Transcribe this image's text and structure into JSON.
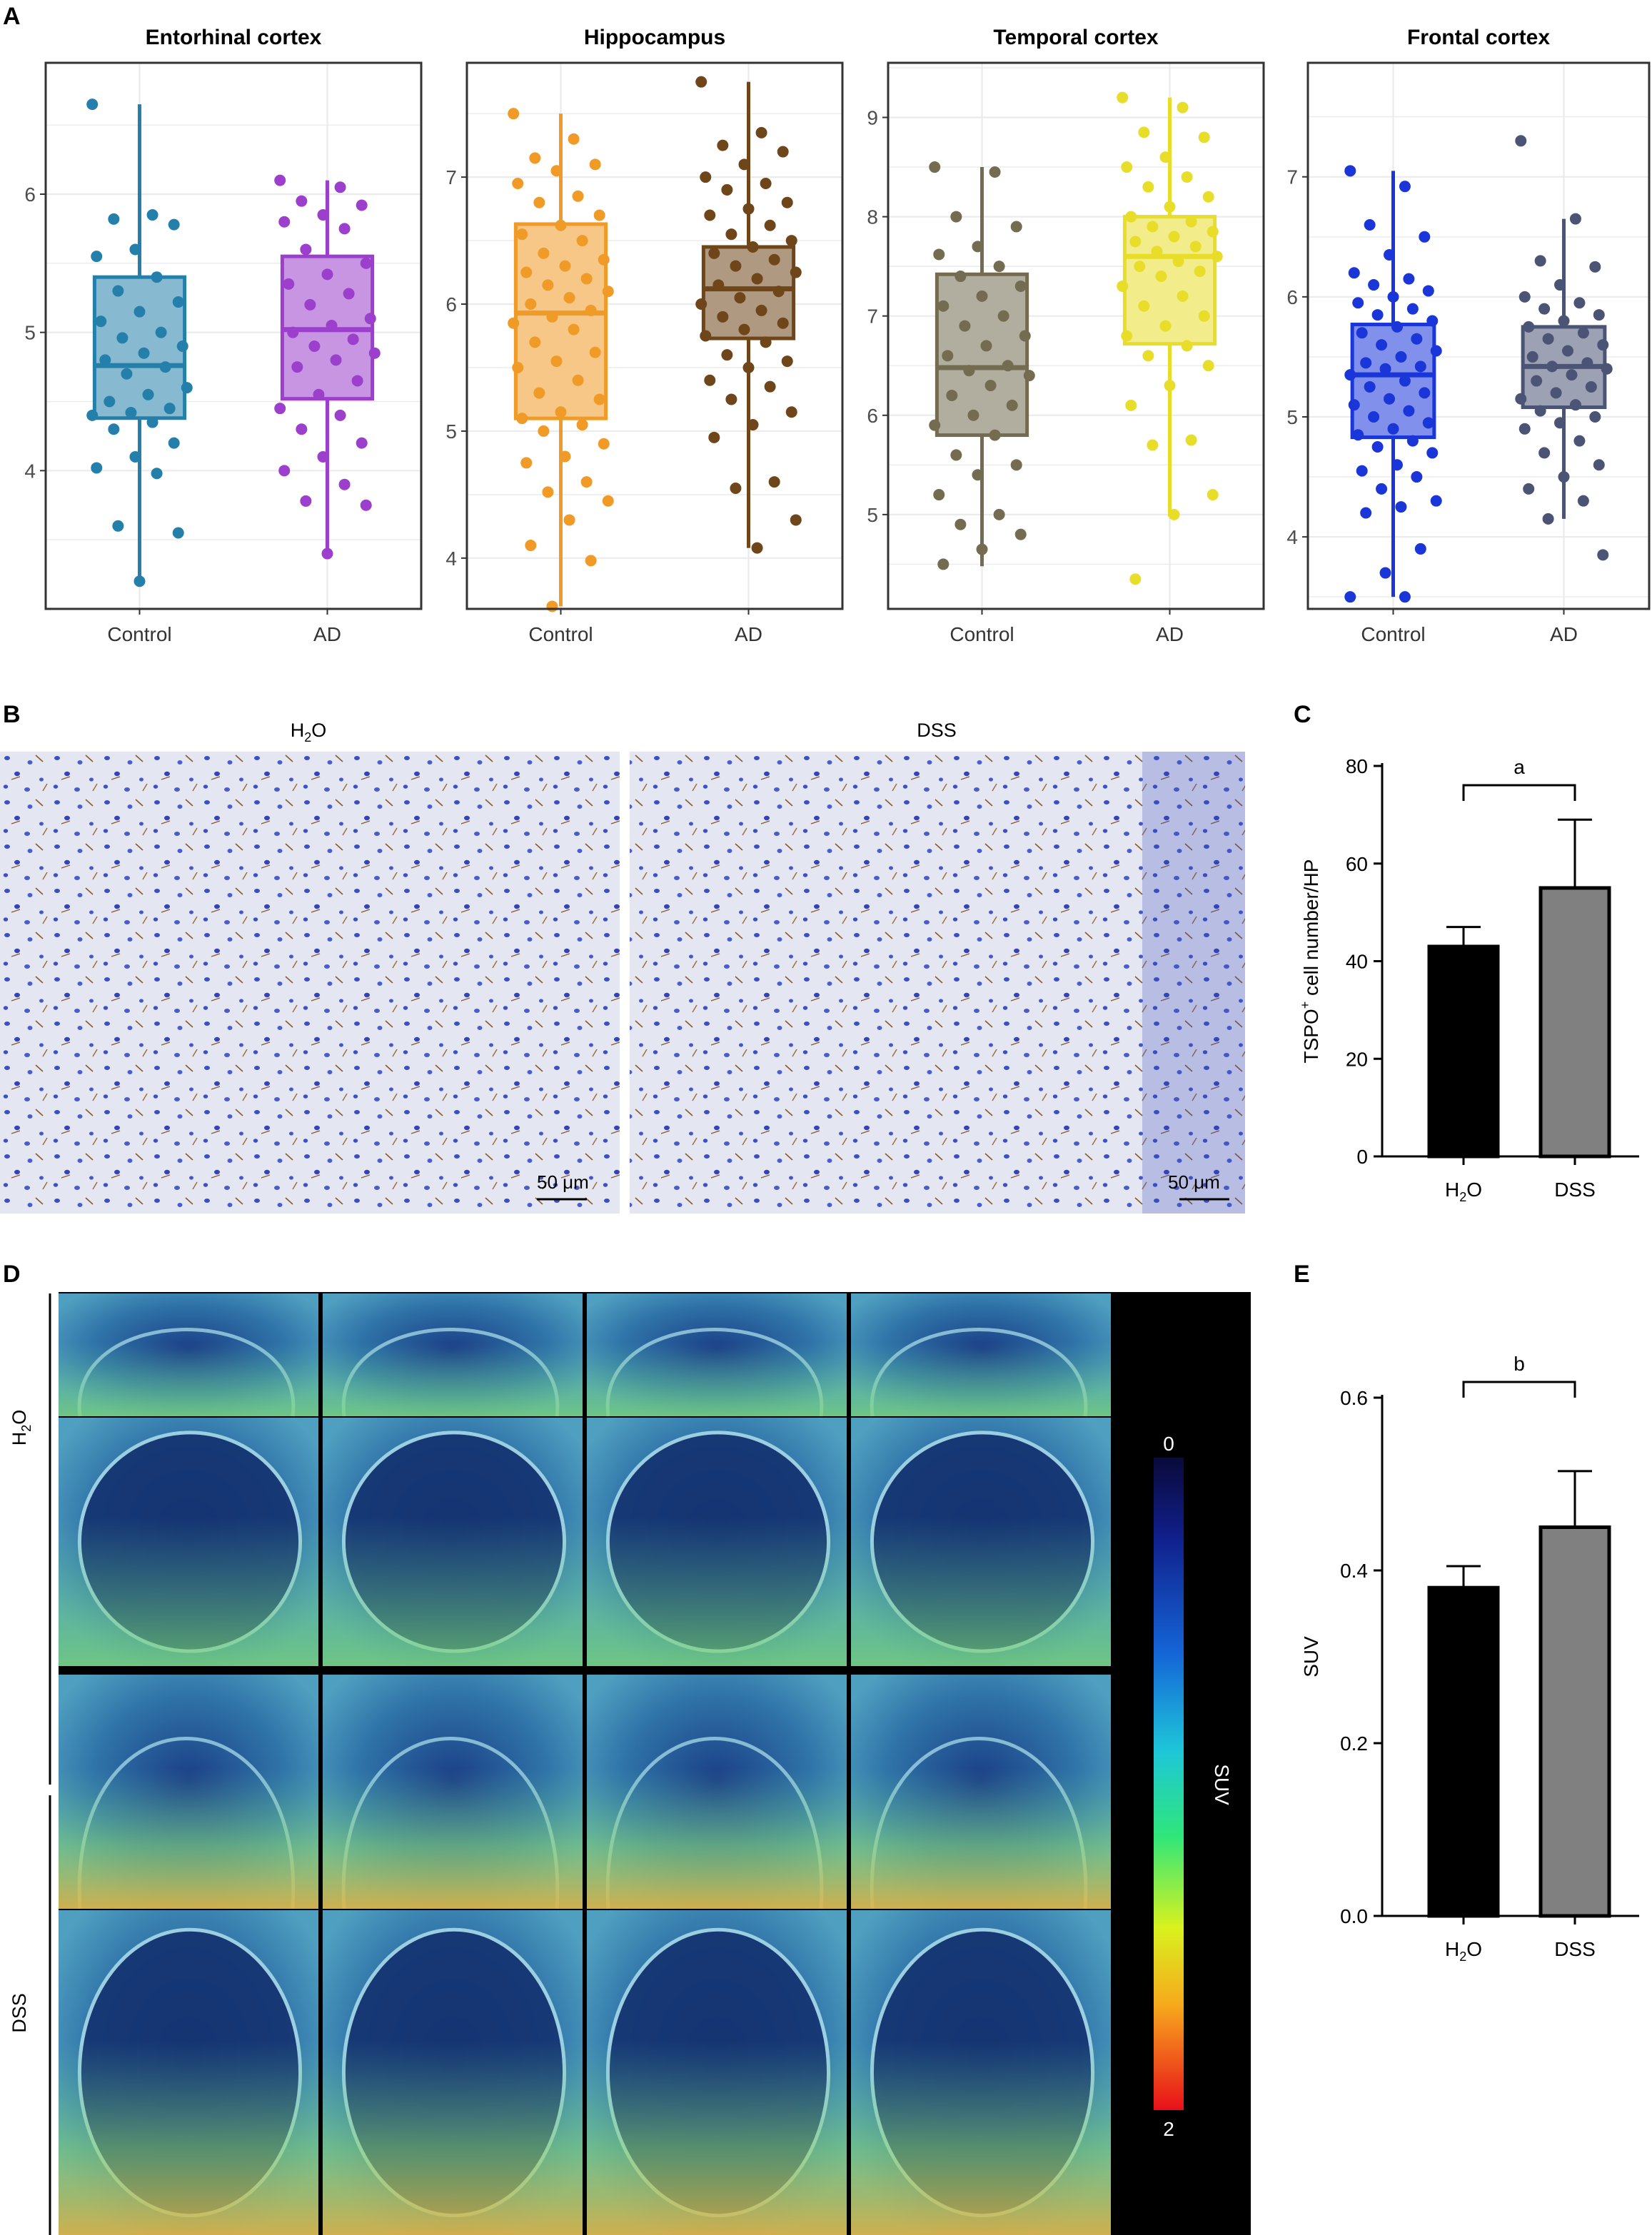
{
  "figure": {
    "panel_labels": [
      "A",
      "B",
      "C",
      "D",
      "E"
    ]
  },
  "chart_data": [
    {
      "panel": "A",
      "type": "box",
      "title": "Entorhinal cortex",
      "categories": [
        "Control",
        "AD"
      ],
      "colors": [
        "#2480aa",
        "#9b3fcc"
      ],
      "yticks": [
        4,
        5,
        6
      ],
      "ylim": [
        3.0,
        6.95
      ],
      "grid": true,
      "boxes": [
        {
          "group": "Control",
          "whisker_low": 3.2,
          "q1": 4.38,
          "median": 4.76,
          "q3": 5.4,
          "whisker_high": 6.65,
          "points": [
            6.65,
            5.85,
            5.82,
            5.78,
            5.6,
            5.55,
            5.4,
            5.3,
            5.22,
            5.15,
            5.08,
            5.0,
            4.96,
            4.9,
            4.85,
            4.8,
            4.75,
            4.7,
            4.6,
            4.55,
            4.5,
            4.45,
            4.42,
            4.4,
            4.35,
            4.3,
            4.2,
            4.1,
            4.02,
            3.98,
            3.6,
            3.55,
            3.2
          ]
        },
        {
          "group": "AD",
          "whisker_low": 3.4,
          "q1": 4.52,
          "median": 5.02,
          "q3": 5.55,
          "whisker_high": 6.1,
          "points": [
            6.1,
            6.05,
            5.95,
            5.92,
            5.85,
            5.8,
            5.75,
            5.6,
            5.5,
            5.42,
            5.35,
            5.28,
            5.2,
            5.1,
            5.05,
            5.0,
            4.95,
            4.9,
            4.85,
            4.8,
            4.75,
            4.65,
            4.55,
            4.45,
            4.4,
            4.3,
            4.2,
            4.1,
            4.0,
            3.9,
            3.78,
            3.75,
            3.4
          ]
        }
      ]
    },
    {
      "panel": "A",
      "type": "box",
      "title": "Hippocampus",
      "categories": [
        "Control",
        "AD"
      ],
      "colors": [
        "#f09a27",
        "#6f4619"
      ],
      "yticks": [
        4,
        5,
        6,
        7
      ],
      "ylim": [
        3.6,
        7.9
      ],
      "grid": true,
      "boxes": [
        {
          "group": "Control",
          "whisker_low": 3.62,
          "q1": 5.1,
          "median": 5.93,
          "q3": 6.63,
          "whisker_high": 7.5,
          "points": [
            7.5,
            7.3,
            7.15,
            7.1,
            7.05,
            6.95,
            6.85,
            6.8,
            6.7,
            6.62,
            6.55,
            6.5,
            6.4,
            6.35,
            6.3,
            6.25,
            6.2,
            6.15,
            6.1,
            6.05,
            6.0,
            5.95,
            5.9,
            5.85,
            5.8,
            5.7,
            5.62,
            5.55,
            5.5,
            5.4,
            5.3,
            5.25,
            5.15,
            5.1,
            5.05,
            5.0,
            4.9,
            4.8,
            4.75,
            4.6,
            4.52,
            4.45,
            4.3,
            4.1,
            3.98,
            3.62
          ]
        },
        {
          "group": "AD",
          "whisker_low": 4.08,
          "q1": 5.73,
          "median": 6.12,
          "q3": 6.45,
          "whisker_high": 7.75,
          "points": [
            7.75,
            7.35,
            7.25,
            7.2,
            7.1,
            7.0,
            6.95,
            6.9,
            6.8,
            6.75,
            6.7,
            6.62,
            6.55,
            6.5,
            6.45,
            6.4,
            6.35,
            6.3,
            6.25,
            6.2,
            6.15,
            6.1,
            6.05,
            6.0,
            5.95,
            5.9,
            5.85,
            5.8,
            5.75,
            5.7,
            5.6,
            5.55,
            5.5,
            5.4,
            5.35,
            5.25,
            5.15,
            5.05,
            4.95,
            4.6,
            4.55,
            4.3,
            4.08
          ]
        }
      ]
    },
    {
      "panel": "A",
      "type": "box",
      "title": "Temporal cortex",
      "categories": [
        "Control",
        "AD"
      ],
      "colors": [
        "#736c50",
        "#e8de2a"
      ],
      "yticks": [
        5,
        6,
        7,
        8,
        9
      ],
      "ylim": [
        4.05,
        9.55
      ],
      "grid": true,
      "boxes": [
        {
          "group": "Control",
          "whisker_low": 4.48,
          "q1": 5.8,
          "median": 6.48,
          "q3": 7.42,
          "whisker_high": 8.5,
          "points": [
            8.5,
            8.45,
            8.0,
            7.9,
            7.7,
            7.62,
            7.5,
            7.4,
            7.3,
            7.2,
            7.1,
            7.0,
            6.9,
            6.8,
            6.7,
            6.6,
            6.5,
            6.45,
            6.4,
            6.3,
            6.2,
            6.1,
            6.0,
            5.9,
            5.8,
            5.6,
            5.5,
            5.4,
            5.2,
            5.0,
            4.9,
            4.8,
            4.65,
            4.5
          ]
        },
        {
          "group": "AD",
          "whisker_low": 4.98,
          "q1": 6.72,
          "median": 7.6,
          "q3": 8.0,
          "whisker_high": 9.2,
          "points": [
            9.2,
            9.1,
            8.85,
            8.8,
            8.6,
            8.5,
            8.4,
            8.3,
            8.2,
            8.1,
            8.0,
            7.95,
            7.9,
            7.85,
            7.8,
            7.75,
            7.7,
            7.65,
            7.6,
            7.55,
            7.5,
            7.45,
            7.4,
            7.3,
            7.2,
            7.1,
            7.0,
            6.9,
            6.8,
            6.7,
            6.6,
            6.5,
            6.3,
            6.1,
            5.75,
            5.7,
            5.2,
            5.0,
            4.35
          ]
        }
      ]
    },
    {
      "panel": "A",
      "type": "box",
      "title": "Frontal cortex",
      "categories": [
        "Control",
        "AD"
      ],
      "colors": [
        "#1a36d8",
        "#4b5475"
      ],
      "yticks": [
        4,
        5,
        6,
        7
      ],
      "ylim": [
        3.4,
        7.95
      ],
      "grid": true,
      "boxes": [
        {
          "group": "Control",
          "whisker_low": 3.5,
          "q1": 4.83,
          "median": 5.35,
          "q3": 5.77,
          "whisker_high": 7.05,
          "points": [
            7.05,
            6.92,
            6.6,
            6.5,
            6.35,
            6.2,
            6.15,
            6.1,
            6.05,
            6.0,
            5.95,
            5.9,
            5.85,
            5.8,
            5.75,
            5.7,
            5.65,
            5.6,
            5.55,
            5.5,
            5.45,
            5.42,
            5.4,
            5.35,
            5.3,
            5.25,
            5.2,
            5.15,
            5.1,
            5.05,
            5.0,
            4.95,
            4.9,
            4.85,
            4.8,
            4.75,
            4.7,
            4.6,
            4.55,
            4.5,
            4.4,
            4.3,
            4.25,
            4.2,
            3.9,
            3.7,
            3.5,
            3.5
          ]
        },
        {
          "group": "AD",
          "whisker_low": 4.15,
          "q1": 5.08,
          "median": 5.42,
          "q3": 5.75,
          "whisker_high": 6.65,
          "points": [
            7.3,
            6.65,
            6.3,
            6.25,
            6.1,
            6.0,
            5.95,
            5.9,
            5.85,
            5.8,
            5.75,
            5.7,
            5.65,
            5.6,
            5.55,
            5.5,
            5.45,
            5.42,
            5.4,
            5.35,
            5.3,
            5.25,
            5.2,
            5.15,
            5.1,
            5.05,
            5.0,
            4.95,
            4.9,
            4.8,
            4.7,
            4.6,
            4.5,
            4.4,
            4.3,
            4.15,
            3.85
          ]
        }
      ]
    },
    {
      "panel": "C",
      "type": "bar",
      "categories": [
        "H2O",
        "DSS"
      ],
      "category_labels": [
        [
          "H",
          "2",
          "O"
        ],
        [
          "DSS",
          "",
          ""
        ]
      ],
      "values": [
        43,
        55
      ],
      "errors": [
        4,
        14
      ],
      "colors": [
        "#000000",
        "#808080"
      ],
      "ylabel": [
        "TSPO",
        "+",
        " cell number/HP"
      ],
      "yticks": [
        0,
        20,
        40,
        60,
        80
      ],
      "ylim": [
        0,
        80
      ],
      "annotation": "a"
    },
    {
      "panel": "E",
      "type": "bar",
      "categories": [
        "H2O",
        "DSS"
      ],
      "category_labels": [
        [
          "H",
          "2",
          "O"
        ],
        [
          "DSS",
          "",
          ""
        ]
      ],
      "values": [
        0.38,
        0.45
      ],
      "errors": [
        0.025,
        0.065
      ],
      "colors": [
        "#000000",
        "#808080"
      ],
      "ylabel": [
        "SUV",
        "",
        ""
      ],
      "yticks": [
        "0.0",
        "0.2",
        "0.4",
        "0.6"
      ],
      "yticks_num": [
        0,
        0.2,
        0.4,
        0.6
      ],
      "ylim": [
        0,
        0.6
      ],
      "annotation": "b"
    }
  ],
  "micrographs": {
    "panel": "B",
    "labels": [
      [
        "H",
        "2",
        "O"
      ],
      [
        "DSS",
        "",
        ""
      ]
    ],
    "scale_bar": "50 μm"
  },
  "pet": {
    "panel": "D",
    "row_groups": [
      [
        "H",
        "2",
        "O"
      ],
      [
        "DSS",
        "",
        ""
      ]
    ],
    "colorbar": {
      "min": "0",
      "max": "2",
      "label": "SUV"
    }
  }
}
